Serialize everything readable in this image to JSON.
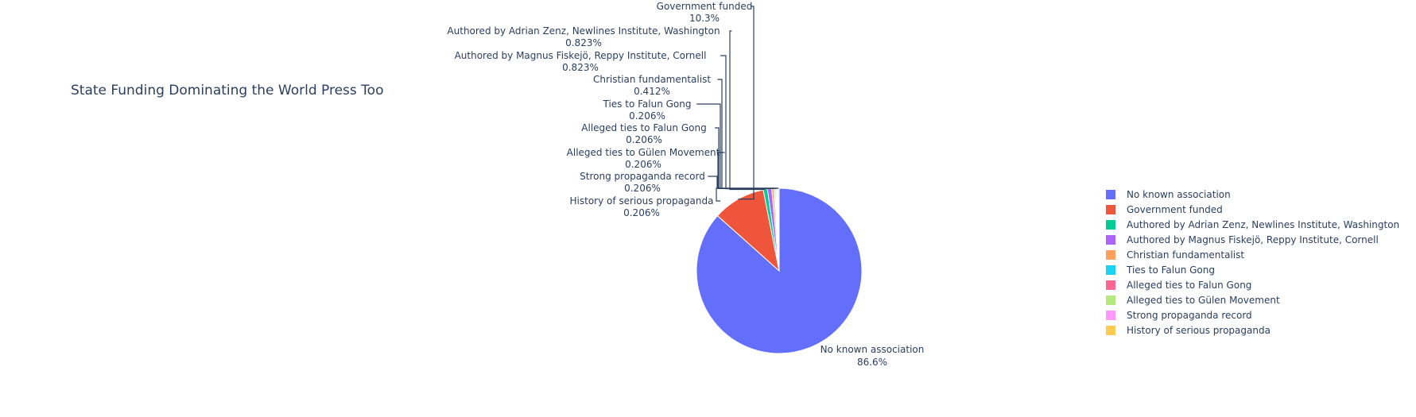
{
  "chart_data": {
    "type": "pie",
    "title": "State Funding Dominating the World Press Too",
    "slices": [
      {
        "label": "No known association",
        "value": 86.6,
        "text": "86.6%",
        "color": "#636efa"
      },
      {
        "label": "Government funded",
        "value": 10.3,
        "text": "10.3%",
        "color": "#EF553B"
      },
      {
        "label": "Authored by Adrian Zenz, Newlines Institute, Washington",
        "value": 0.823,
        "text": "0.823%",
        "color": "#00cc96"
      },
      {
        "label": "Authored by Magnus Fiskejö, Reppy Institute, Cornell",
        "value": 0.823,
        "text": "0.823%",
        "color": "#ab63fa"
      },
      {
        "label": "Christian fundamentalist",
        "value": 0.412,
        "text": "0.412%",
        "color": "#FFA15A"
      },
      {
        "label": "Ties to Falun Gong",
        "value": 0.206,
        "text": "0.206%",
        "color": "#19d3f3"
      },
      {
        "label": "Alleged ties to Falun Gong",
        "value": 0.206,
        "text": "0.206%",
        "color": "#FF6692"
      },
      {
        "label": "Alleged ties to Gülen Movement",
        "value": 0.206,
        "text": "0.206%",
        "color": "#B6E880"
      },
      {
        "label": "Strong propaganda record",
        "value": 0.206,
        "text": "0.206%",
        "color": "#FF97FF"
      },
      {
        "label": "History of serious propaganda",
        "value": 0.206,
        "text": "0.206%",
        "color": "#FECB52"
      }
    ],
    "direction": "clockwise",
    "start": "top",
    "legend_position": "right"
  }
}
